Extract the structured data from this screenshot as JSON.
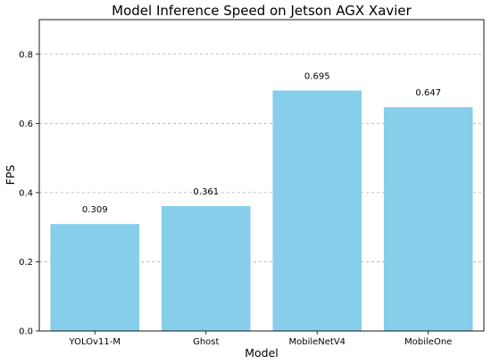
{
  "chart_data": {
    "type": "bar",
    "title": "Model Inference Speed on Jetson AGX Xavier",
    "xlabel": "Model",
    "ylabel": "FPS",
    "categories": [
      "YOLOv11-M",
      "Ghost",
      "MobileNetV4",
      "MobileOne"
    ],
    "values": [
      0.309,
      0.361,
      0.695,
      0.647
    ],
    "data_labels": [
      "0.309",
      "0.361",
      "0.695",
      "0.647"
    ],
    "ylim": [
      0,
      0.9
    ],
    "yticks": [
      0.0,
      0.2,
      0.4,
      0.6,
      0.8
    ],
    "ytick_labels": [
      "0.0",
      "0.2",
      "0.4",
      "0.6",
      "0.8"
    ],
    "grid": "y-dashed",
    "legend": "none",
    "bar_color": "#87ceeb"
  }
}
